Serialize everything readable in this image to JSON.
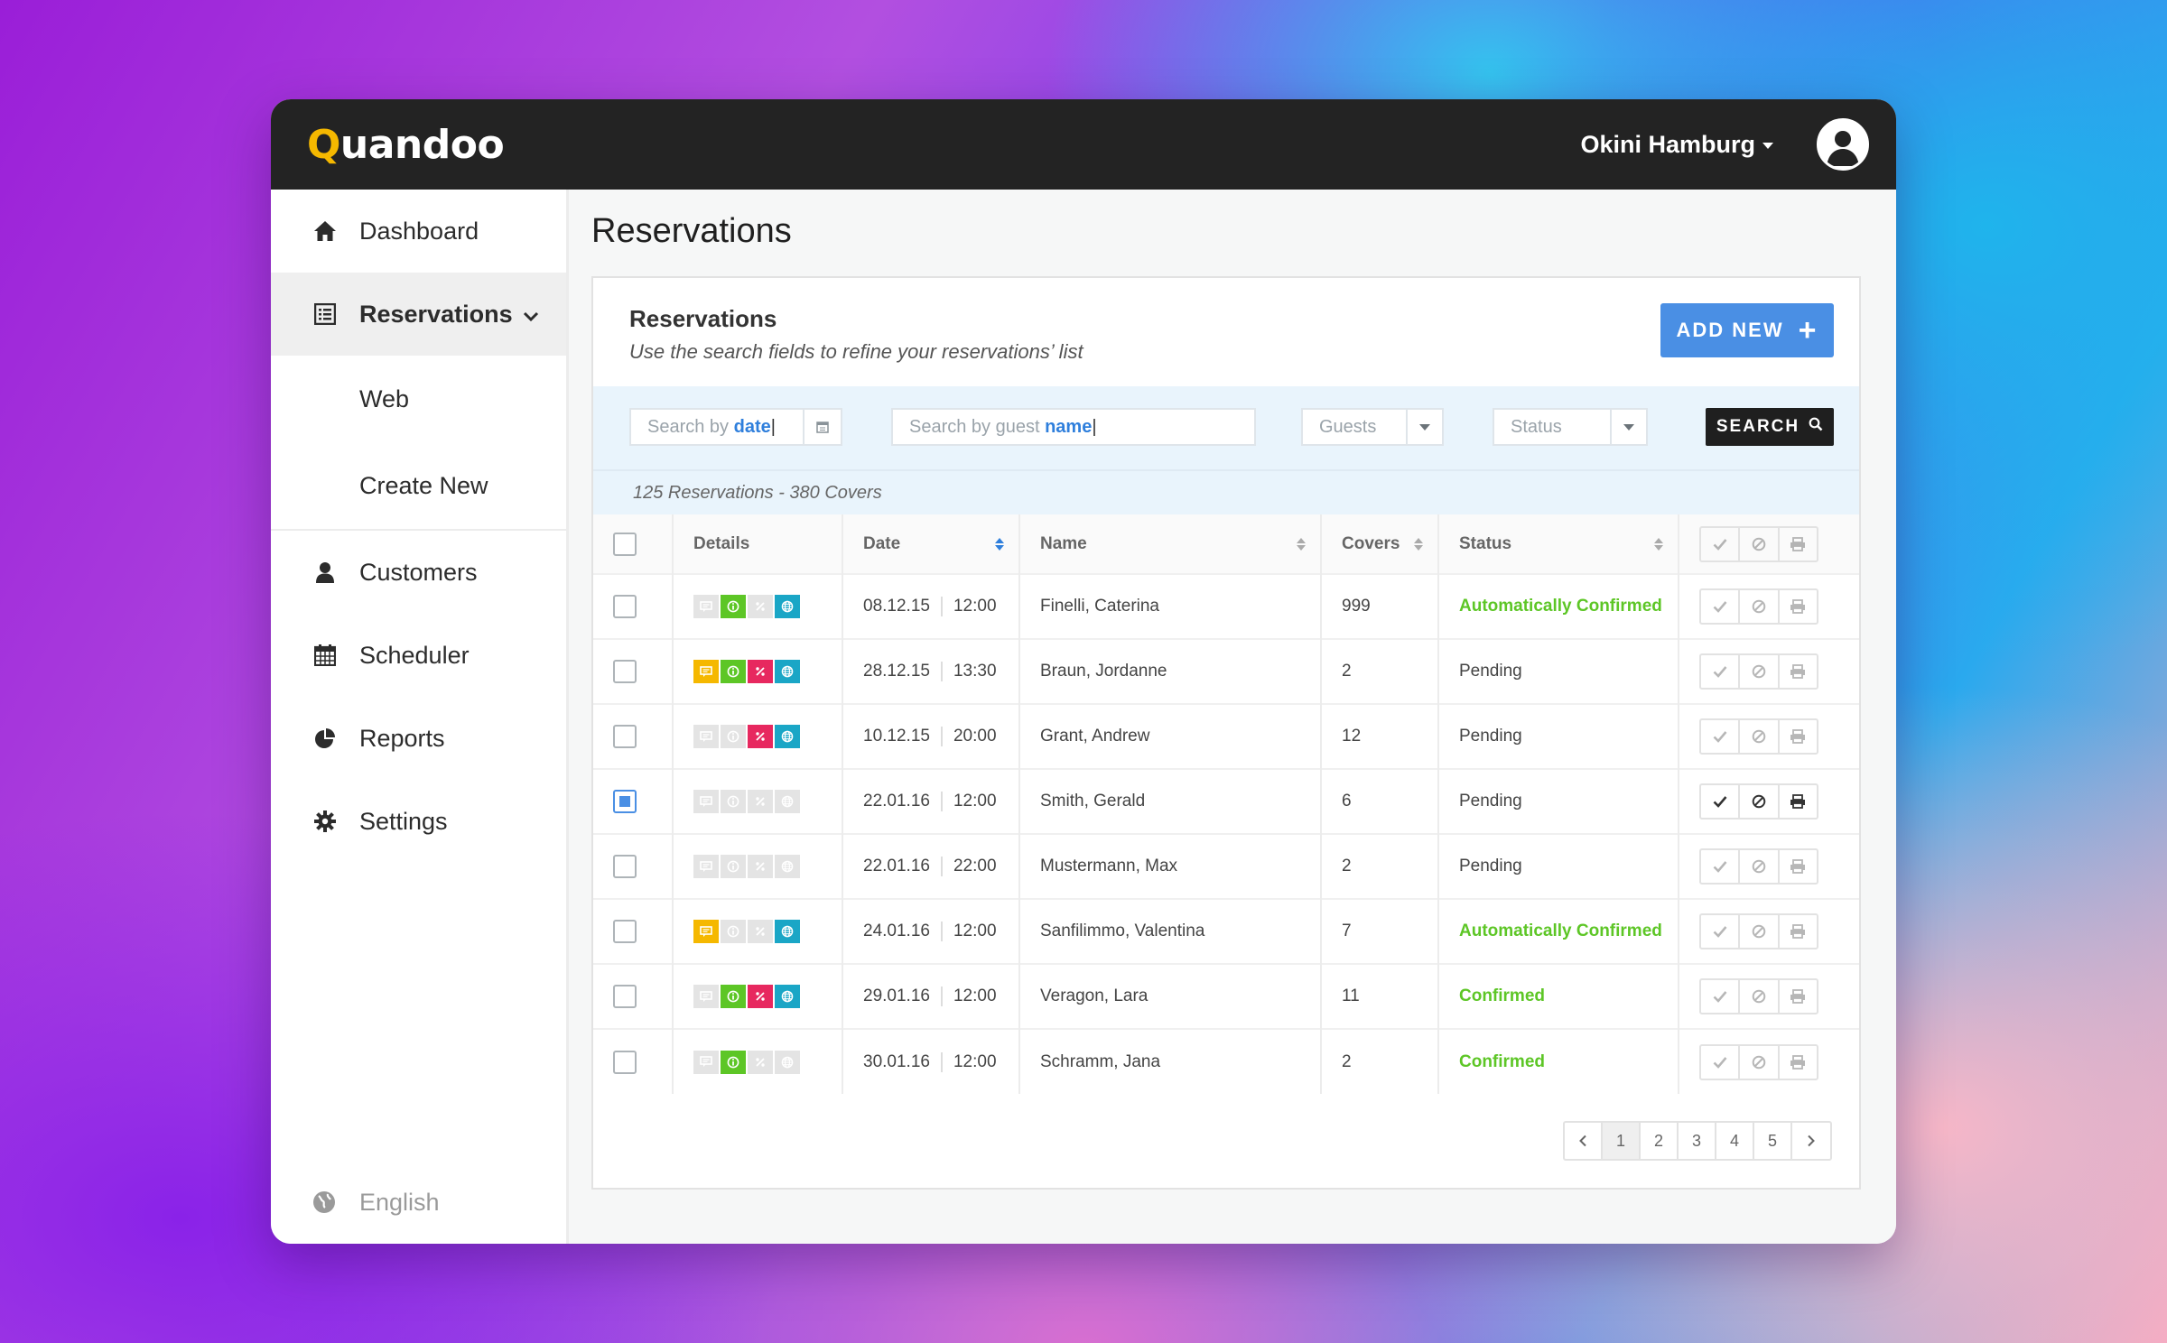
{
  "app": {
    "logo_q": "Q",
    "logo_rest": "uandoo",
    "user_name": "Okini Hamburg"
  },
  "sidebar": {
    "items": [
      {
        "label": "Dashboard",
        "icon": "home-icon"
      },
      {
        "label": "Reservations",
        "icon": "list-icon",
        "active": true
      },
      {
        "label": "Customers",
        "icon": "user-icon"
      },
      {
        "label": "Scheduler",
        "icon": "calendar-icon"
      },
      {
        "label": "Reports",
        "icon": "pie-chart-icon"
      },
      {
        "label": "Settings",
        "icon": "gear-icon"
      }
    ],
    "sub_items": [
      {
        "label": "Web"
      },
      {
        "label": "Create New"
      }
    ],
    "language": "English"
  },
  "page": {
    "title": "Reservations"
  },
  "panel": {
    "title": "Reservations",
    "subtitle": "Use the search fields to refine your reservations’ list",
    "add_label": "ADD NEW"
  },
  "filters": {
    "date_prefix": "Search by ",
    "date_hl": "date",
    "name_prefix": "Search by guest ",
    "name_hl": "name",
    "guests_placeholder": "Guests",
    "status_placeholder": "Status",
    "search_label": "SEARCH",
    "summary": "125 Reservations - 380 Covers"
  },
  "table": {
    "headers": {
      "details": "Details",
      "date": "Date",
      "name": "Name",
      "covers": "Covers",
      "status": "Status"
    },
    "rows": [
      {
        "date": "08.12.15",
        "time": "12:00",
        "name": "Finelli, Caterina",
        "covers": "999",
        "status": "Automatically Confirmed",
        "checked": false,
        "badges": [
          "off",
          "info",
          "off",
          "web"
        ]
      },
      {
        "date": "28.12.15",
        "time": "13:30",
        "name": "Braun, Jordanne",
        "covers": "2",
        "status": "Pending",
        "checked": false,
        "badges": [
          "msg",
          "info",
          "pct",
          "web"
        ]
      },
      {
        "date": "10.12.15",
        "time": "20:00",
        "name": "Grant, Andrew",
        "covers": "12",
        "status": "Pending",
        "checked": false,
        "badges": [
          "off",
          "off",
          "pct",
          "web"
        ]
      },
      {
        "date": "22.01.16",
        "time": "12:00",
        "name": "Smith, Gerald",
        "covers": "6",
        "status": "Pending",
        "checked": true,
        "badges": [
          "off",
          "off",
          "off",
          "off"
        ]
      },
      {
        "date": "22.01.16",
        "time": "22:00",
        "name": "Mustermann, Max",
        "covers": "2",
        "status": "Pending",
        "checked": false,
        "badges": [
          "off",
          "off",
          "off",
          "off"
        ]
      },
      {
        "date": "24.01.16",
        "time": "12:00",
        "name": "Sanfilimmo, Valentina",
        "covers": "7",
        "status": "Automatically Confirmed",
        "checked": false,
        "badges": [
          "msg",
          "off",
          "off",
          "web"
        ]
      },
      {
        "date": "29.01.16",
        "time": "12:00",
        "name": "Veragon, Lara",
        "covers": "11",
        "status": "Confirmed",
        "checked": false,
        "badges": [
          "off",
          "info",
          "pct",
          "web"
        ]
      },
      {
        "date": "30.01.16",
        "time": "12:00",
        "name": "Schramm, Jana",
        "covers": "2",
        "status": "Confirmed",
        "checked": false,
        "badges": [
          "off",
          "info",
          "off",
          "off"
        ]
      }
    ]
  },
  "pagination": {
    "pages": [
      "1",
      "2",
      "3",
      "4",
      "5"
    ],
    "current": "1"
  },
  "colors": {
    "accent": "#4a8fe4",
    "confirmed": "#5dc626",
    "message": "#f5b800",
    "discount": "#e7285f",
    "web": "#1aa6c6"
  }
}
